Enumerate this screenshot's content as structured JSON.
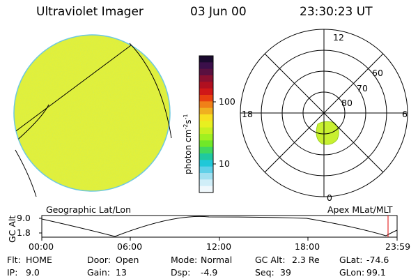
{
  "header": {
    "title": "Ultraviolet Imager",
    "date": "03 Jun 00",
    "time": "23:30:23 UT"
  },
  "colorbar": {
    "unit_text": "photon cm",
    "unit_exp1": "-2",
    "unit_mid": "s",
    "unit_exp2": "-1",
    "ticks": [
      "100",
      "10"
    ],
    "colors": [
      "#1a0a2e",
      "#3b0f4a",
      "#5a1040",
      "#8a1030",
      "#b01020",
      "#d01818",
      "#e84010",
      "#f08018",
      "#f0b020",
      "#f8e020",
      "#e8f020",
      "#c8f020",
      "#a0f020",
      "#70e828",
      "#40d860",
      "#20c8a0",
      "#20c8d8",
      "#60d0e8",
      "#a0e0f0",
      "#d0eef8",
      "#f0f8fc"
    ]
  },
  "left_panel": {
    "label": "Geographic Lat/Lon",
    "fill_color": "#e2f03a"
  },
  "right_panel": {
    "label": "Apex MLat/MLT",
    "mlt_labels": {
      "top": "12",
      "left": "18",
      "right": "6",
      "bottom": "0"
    },
    "lat_labels": [
      "60",
      "70",
      "80"
    ],
    "oval_color": "#c8f030"
  },
  "timeline": {
    "axis_label": "GC Alt",
    "y_ticks": [
      "9.0",
      "1.8"
    ],
    "x_ticks": [
      "00:00",
      "06:00",
      "12:00",
      "18:00",
      "23:59"
    ]
  },
  "status": {
    "row1": [
      {
        "label": "Flt:",
        "value": "HOME"
      },
      {
        "label": "Door:",
        "value": "Open"
      },
      {
        "label": "Mode:",
        "value": "Normal"
      },
      {
        "label": "GC Alt:",
        "value": "2.3 Re"
      },
      {
        "label": "GLat:",
        "value": "-74.6"
      }
    ],
    "row2": [
      {
        "label": "IP:",
        "value": "9.0"
      },
      {
        "label": "Gain:",
        "value": "13"
      },
      {
        "label": "Dsp:",
        "value": "-4.9"
      },
      {
        "label": "Seq:",
        "value": "39"
      },
      {
        "label": "GLon:",
        "value": "99.1"
      }
    ]
  }
}
